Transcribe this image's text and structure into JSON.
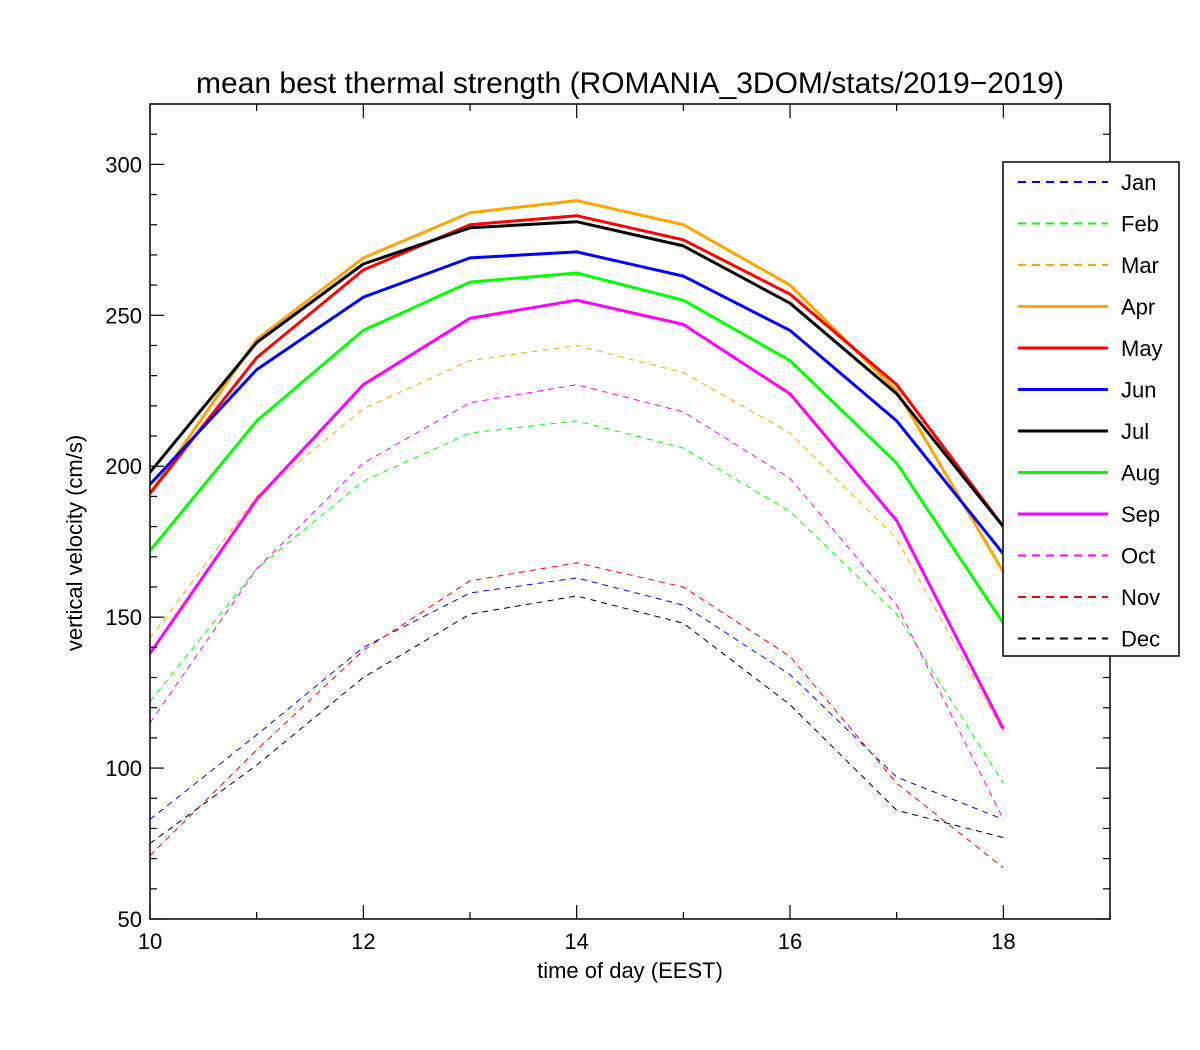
{
  "chart_data": {
    "type": "line",
    "title": "mean best thermal strength (ROMANIA_3DOM/stats/2019−2019)",
    "xlabel": "time of day (EEST)",
    "ylabel": "vertical velocity (cm/s)",
    "xlim": [
      10,
      19
    ],
    "ylim": [
      50,
      320
    ],
    "xticks": [
      10,
      12,
      14,
      16,
      18
    ],
    "xtick_labels": [
      "10",
      "12",
      "14",
      "16",
      "18"
    ],
    "yticks": [
      50,
      100,
      150,
      200,
      250,
      300
    ],
    "ytick_labels": [
      "50",
      "100",
      "150",
      "200",
      "250",
      "300"
    ],
    "grid": false,
    "legend_position": "top-right",
    "x": [
      10,
      11,
      12,
      13,
      14,
      15,
      16,
      17,
      18
    ],
    "series": [
      {
        "name": "Jan",
        "color": "#0000ff",
        "style": "dashed",
        "values": [
          83,
          111,
          140,
          158,
          163,
          154,
          131,
          97,
          83
        ]
      },
      {
        "name": "Feb",
        "color": "#00ff00",
        "style": "dashed",
        "values": [
          122,
          166,
          195,
          211,
          215,
          206,
          185,
          151,
          95
        ]
      },
      {
        "name": "Mar",
        "color": "#ffa500",
        "style": "dashed",
        "values": [
          143,
          190,
          219,
          235,
          240,
          231,
          211,
          176,
          112
        ]
      },
      {
        "name": "Apr",
        "color": "#ffa500",
        "style": "solid",
        "values": [
          191,
          242,
          269,
          284,
          288,
          280,
          260,
          225,
          165
        ]
      },
      {
        "name": "May",
        "color": "#ff0000",
        "style": "solid",
        "values": [
          191,
          236,
          265,
          280,
          283,
          275,
          257,
          227,
          180
        ]
      },
      {
        "name": "Jun",
        "color": "#0000ff",
        "style": "solid",
        "values": [
          194,
          232,
          256,
          269,
          271,
          263,
          245,
          215,
          171
        ]
      },
      {
        "name": "Jul",
        "color": "#000000",
        "style": "solid",
        "values": [
          198,
          241,
          267,
          279,
          281,
          273,
          254,
          224,
          180
        ]
      },
      {
        "name": "Aug",
        "color": "#00ff00",
        "style": "solid",
        "values": [
          172,
          215,
          245,
          261,
          264,
          255,
          235,
          201,
          148
        ]
      },
      {
        "name": "Sep",
        "color": "#ff00ff",
        "style": "solid",
        "values": [
          138,
          189,
          227,
          249,
          255,
          247,
          224,
          182,
          113
        ]
      },
      {
        "name": "Oct",
        "color": "#ff00ff",
        "style": "dashed",
        "values": [
          115,
          166,
          201,
          221,
          227,
          218,
          196,
          154,
          83
        ]
      },
      {
        "name": "Nov",
        "color": "#ff0000",
        "style": "dashed",
        "values": [
          71,
          106,
          139,
          162,
          168,
          160,
          137,
          95,
          67
        ]
      },
      {
        "name": "Dec",
        "color": "#000000",
        "style": "dashed",
        "values": [
          75,
          101,
          130,
          151,
          157,
          148,
          121,
          86,
          77
        ]
      }
    ]
  }
}
